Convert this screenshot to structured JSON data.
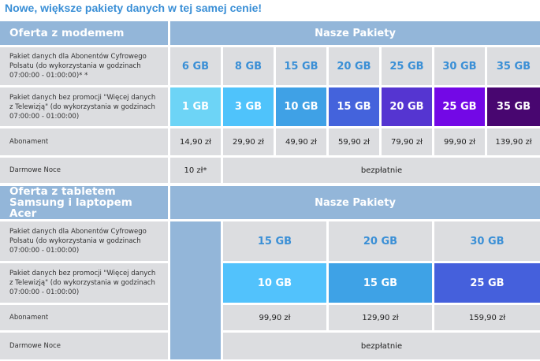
{
  "title": "Nowe, większe pakiety danych w tej samej cenie!",
  "section1": {
    "offer": "Oferta z modemem",
    "packages": "Nasze Pakiety",
    "row_labels": [
      "Pakiet danych dla Abonentów Cyfrowego Polsatu (do wykorzystania w godzinach 07:00:00 -  01:00:00)* *",
      "Pakiet danych bez promocji \"Więcej danych z Telewizją\" (do wykorzystania w godzinach 07:00:00 - 01:00:00)",
      "Abonament",
      "Darmowe Noce"
    ],
    "with_tv": [
      "6 GB",
      "8 GB",
      "15 GB",
      "20 GB",
      "25 GB",
      "30 GB",
      "35 GB"
    ],
    "without_promo": [
      "1 GB",
      "3 GB",
      "10 GB",
      "15 GB",
      "20 GB",
      "25 GB",
      "35 GB"
    ],
    "without_promo_colors": [
      "#6dd4f6",
      "#4fc3fb",
      "#3fa1e6",
      "#4463dc",
      "#5535d1",
      "#7308e6",
      "#480670"
    ],
    "price": [
      "14,90 zł",
      "29,90 zł",
      "49,90 zł",
      "59,90 zł",
      "79,90 zł",
      "99,90 zł",
      "139,90 zł"
    ],
    "nights_first": "10 zł*",
    "nights_rest": "bezpłatnie"
  },
  "section2": {
    "offer": "Oferta z tabletem Samsung i laptopem Acer",
    "packages": "Nasze Pakiety",
    "row_labels": [
      "Pakiet danych dla Abonentów Cyfrowego Polsatu (do wykorzystania w godzinach 07:00:00 -  01:00:00)",
      "Pakiet danych bez promocji \"Więcej danych z Telewizją\" (do wykorzystania w godzinach 07:00:00 - 01:00:00)",
      "Abonament",
      "Darmowe Noce"
    ],
    "with_tv": [
      "15 GB",
      "20 GB",
      "30 GB"
    ],
    "without_promo": [
      "10 GB",
      "15 GB",
      "25 GB"
    ],
    "without_promo_colors": [
      "#52c2fc",
      "#3ea2e6",
      "#4560dc"
    ],
    "price": [
      "99,90 zł",
      "129,90 zł",
      "159,90 zł"
    ],
    "nights": "bezpłatnie"
  }
}
